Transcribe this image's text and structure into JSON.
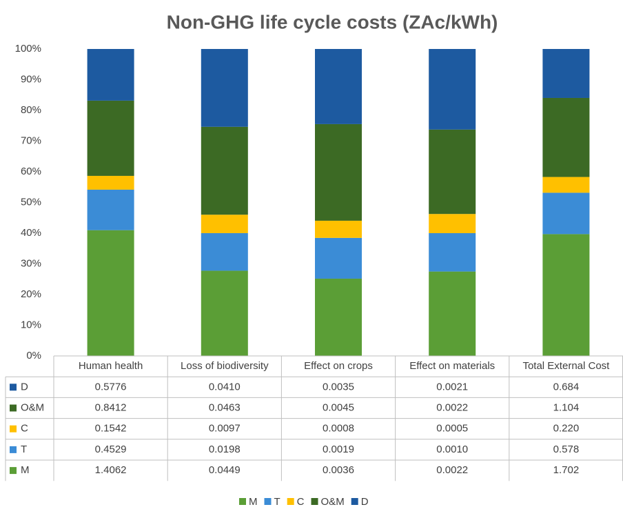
{
  "chart_data": {
    "type": "stacked_percent_bar",
    "title": "Non-GHG life cycle costs (ZAc/kWh)",
    "categories": [
      "Human health",
      "Loss of biodiversity",
      "Effect on crops",
      "Effect on materials",
      "Total External Cost"
    ],
    "series": [
      {
        "name": "M",
        "color": "#5b9e36",
        "values": [
          1.4062,
          0.0449,
          0.0036,
          0.0022,
          1.702
        ],
        "value_labels": [
          "1.4062",
          "0.0449",
          "0.0036",
          "0.0022",
          "1.702"
        ]
      },
      {
        "name": "T",
        "color": "#3b8cd6",
        "values": [
          0.4529,
          0.0198,
          0.0019,
          0.001,
          0.578
        ],
        "value_labels": [
          "0.4529",
          "0.0198",
          "0.0019",
          "0.0010",
          "0.578"
        ]
      },
      {
        "name": "C",
        "color": "#ffc000",
        "values": [
          0.1542,
          0.0097,
          0.0008,
          0.0005,
          0.22
        ],
        "value_labels": [
          "0.1542",
          "0.0097",
          "0.0008",
          "0.0005",
          "0.220"
        ]
      },
      {
        "name": "O&M",
        "color": "#3c6a24",
        "values": [
          0.8412,
          0.0463,
          0.0045,
          0.0022,
          1.104
        ],
        "value_labels": [
          "0.8412",
          "0.0463",
          "0.0045",
          "0.0022",
          "1.104"
        ]
      },
      {
        "name": "D",
        "color": "#1d5aa0",
        "values": [
          0.5776,
          0.041,
          0.0035,
          0.0021,
          0.684
        ],
        "value_labels": [
          "0.5776",
          "0.0410",
          "0.0035",
          "0.0021",
          "0.684"
        ]
      }
    ],
    "ylim": [
      0,
      100
    ],
    "yticks": [
      {
        "value": 0,
        "label": "0%"
      },
      {
        "value": 10,
        "label": "10%"
      },
      {
        "value": 20,
        "label": "20%"
      },
      {
        "value": 30,
        "label": "30%"
      },
      {
        "value": 40,
        "label": "40%"
      },
      {
        "value": 50,
        "label": "50%"
      },
      {
        "value": 60,
        "label": "60%"
      },
      {
        "value": 70,
        "label": "70%"
      },
      {
        "value": 80,
        "label": "80%"
      },
      {
        "value": 90,
        "label": "90%"
      },
      {
        "value": 100,
        "label": "100%"
      }
    ],
    "grid": false
  }
}
